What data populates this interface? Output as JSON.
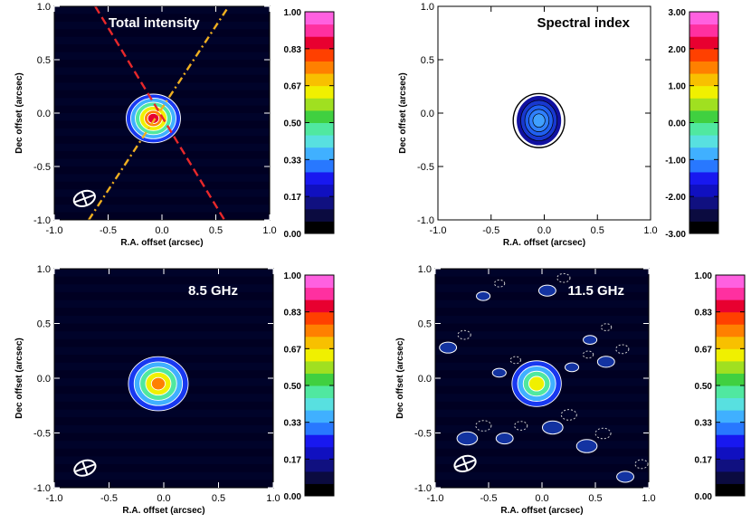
{
  "chart_data": [
    {
      "type": "heatmap",
      "title": "Total intensity",
      "xlabel": "R.A. offset (arcsec)",
      "ylabel": "Dec offset (arcsec)",
      "xlim": [
        -1.0,
        1.0
      ],
      "ylim": [
        -1.0,
        1.0
      ],
      "xticks": [
        "-1.0",
        "-0.5",
        "0.0",
        "0.5",
        "1.0"
      ],
      "yticks": [
        "1.0",
        "0.5",
        "0.0",
        "-0.5",
        "-1.0"
      ],
      "background": "#000022",
      "source_center": [
        -0.08,
        -0.05
      ],
      "contour_radii": [
        0.24,
        0.2,
        0.16,
        0.12,
        0.08,
        0.05
      ],
      "beam_center": [
        -0.72,
        -0.8
      ],
      "lines": [
        {
          "style": "dashed",
          "color": "#e8282a",
          "from": [
            -0.62,
            1.0
          ],
          "to": [
            0.58,
            -1.0
          ]
        },
        {
          "style": "dashdot",
          "color": "#f0b020",
          "from": [
            -0.68,
            -1.0
          ],
          "to": [
            0.62,
            1.0
          ]
        }
      ],
      "colorbar_ticks": [
        "1.00",
        "0.83",
        "0.67",
        "0.50",
        "0.33",
        "0.17",
        "0.00"
      ]
    },
    {
      "type": "heatmap",
      "title": "Spectral index",
      "xlabel": "R.A. offset (arcsec)",
      "ylabel": "Dec offset (arcsec)",
      "xlim": [
        -1.0,
        1.0
      ],
      "ylim": [
        -1.0,
        1.0
      ],
      "xticks": [
        "-1.0",
        "-0.5",
        "0.0",
        "0.5",
        "1.0"
      ],
      "yticks": [
        "1.0",
        "0.5",
        "0.0",
        "-0.5",
        "-1.0"
      ],
      "background": "#ffffff",
      "source_center": [
        -0.05,
        -0.07
      ],
      "contour_radii": [
        0.22,
        0.18,
        0.14,
        0.1,
        0.06
      ],
      "colorbar_ticks": [
        "3.00",
        "2.00",
        "1.00",
        "0.00",
        "-1.00",
        "-2.00",
        "-3.00"
      ]
    },
    {
      "type": "heatmap",
      "title": "8.5 GHz",
      "xlabel": "R.A. offset (arcsec)",
      "ylabel": "Dec offset (arcsec)",
      "xlim": [
        -1.0,
        1.0
      ],
      "ylim": [
        -1.0,
        1.0
      ],
      "xticks": [
        "-1.0",
        "-0.5",
        "0.0",
        "0.5",
        "1.0"
      ],
      "yticks": [
        "1.0",
        "0.5",
        "0.0",
        "-0.5",
        "-1.0"
      ],
      "background": "#000022",
      "source_center": [
        -0.05,
        -0.05
      ],
      "contour_radii": [
        0.26,
        0.21,
        0.16,
        0.11,
        0.06
      ],
      "beam_center": [
        -0.72,
        -0.82
      ],
      "colorbar_ticks": [
        "1.00",
        "0.83",
        "0.67",
        "0.50",
        "0.33",
        "0.17",
        "0.00"
      ]
    },
    {
      "type": "heatmap",
      "title": "11.5 GHz",
      "xlabel": "R.A. offset (arcsec)",
      "ylabel": "Dec offset (arcsec)",
      "xlim": [
        -1.0,
        1.0
      ],
      "ylim": [
        -1.0,
        1.0
      ],
      "xticks": [
        "-1.0",
        "-0.5",
        "0.0",
        "0.5",
        "1.0"
      ],
      "yticks": [
        "1.0",
        "0.5",
        "0.0",
        "-0.5",
        "-1.0"
      ],
      "background": "#000022",
      "source_center": [
        -0.05,
        -0.05
      ],
      "contour_radii": [
        0.22,
        0.17,
        0.12,
        0.07
      ],
      "beam_center": [
        -0.72,
        -0.78
      ],
      "noise_blobs": [
        [
          -0.88,
          0.28,
          0.05
        ],
        [
          -0.55,
          0.75,
          0.04
        ],
        [
          0.05,
          0.8,
          0.05
        ],
        [
          -0.7,
          -0.55,
          0.06
        ],
        [
          -0.35,
          -0.55,
          0.05
        ],
        [
          0.1,
          -0.45,
          0.06
        ],
        [
          0.42,
          -0.62,
          0.06
        ],
        [
          0.78,
          -0.9,
          0.05
        ],
        [
          0.6,
          0.15,
          0.05
        ],
        [
          0.45,
          0.35,
          0.04
        ],
        [
          -0.4,
          0.05,
          0.04
        ],
        [
          0.28,
          0.1,
          0.04
        ]
      ],
      "colorbar_ticks": [
        "1.00",
        "0.83",
        "0.67",
        "0.50",
        "0.33",
        "0.17",
        "0.00"
      ]
    }
  ],
  "colormap": [
    "#000000",
    "#0b0b40",
    "#101080",
    "#1010c0",
    "#1818f0",
    "#2878ff",
    "#40b0ff",
    "#58e0e0",
    "#50e8a0",
    "#40d040",
    "#a0e020",
    "#f0f000",
    "#f8c000",
    "#ff8000",
    "#ff4000",
    "#e80030",
    "#ff30a0",
    "#ff60e0"
  ]
}
